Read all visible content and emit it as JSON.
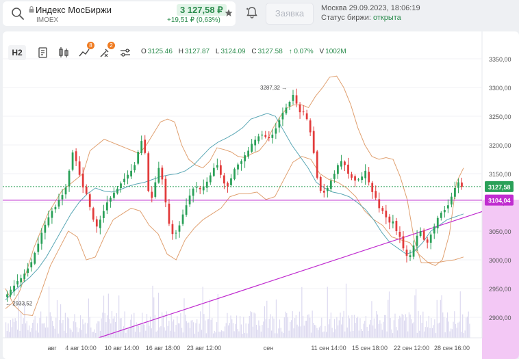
{
  "header": {
    "instrument_name": "Индекс МосБиржи",
    "instrument_code": "IMOEX",
    "price": "3 127,58 ₽",
    "change": "+19,51 ₽ (0,63%)",
    "order_button": "Заявка",
    "market_time": "Москва 29.09.2023, 18:06:19",
    "market_status_label": "Статус биржи:",
    "market_status_value": "открыта"
  },
  "toolbar": {
    "timeframe": "H2",
    "badge_indicators": "8",
    "badge_drawings": "2"
  },
  "ohlc": {
    "o_label": "O",
    "o": "3125.46",
    "h_label": "H",
    "h": "3127.87",
    "l_label": "L",
    "l": "3124.09",
    "c_label": "C",
    "c": "3127.58",
    "change_pct": "↑ 0.07%",
    "v_label": "V",
    "v": "1002M"
  },
  "chart_data": {
    "type": "candlestick",
    "y_ticks": [
      "3350,00",
      "3300,00",
      "3250,00",
      "3200,00",
      "3150,00",
      "3100,00",
      "3050,00",
      "3000,00",
      "2950,00",
      "2900,00"
    ],
    "ylim": [
      2880,
      3370
    ],
    "x_ticks": [
      "авг",
      "4 авг 10:00",
      "10 авг 14:00",
      "16 авг 18:00",
      "23 авг 12:00",
      "сен",
      "11 сен 14:00",
      "15 сен 18:00",
      "22 сен 12:00",
      "28 сен 16:00"
    ],
    "close_path": [
      2940,
      2948,
      2955,
      2963,
      2968,
      2976,
      2985,
      2996,
      3012,
      3028,
      3047,
      3061,
      3074,
      3085,
      3092,
      3104,
      3113,
      3126,
      3155,
      3187,
      3172,
      3148,
      3126,
      3115,
      3092,
      3070,
      3058,
      3070,
      3085,
      3100,
      3108,
      3117,
      3124,
      3133,
      3141,
      3148,
      3155,
      3165,
      3188,
      3207,
      3186,
      3120,
      3108,
      3135,
      3160,
      3140,
      3100,
      3063,
      3045,
      3047,
      3060,
      3079,
      3095,
      3112,
      3124,
      3127,
      3123,
      3128,
      3136,
      3147,
      3160,
      3165,
      3148,
      3133,
      3128,
      3142,
      3158,
      3166,
      3172,
      3182,
      3190,
      3202,
      3209,
      3215,
      3218,
      3214,
      3212,
      3218,
      3229,
      3243,
      3256,
      3265,
      3275,
      3287,
      3272,
      3257,
      3257,
      3245,
      3222,
      3186,
      3143,
      3120,
      3117,
      3125,
      3138,
      3150,
      3165,
      3172,
      3165,
      3150,
      3143,
      3138,
      3140,
      3145,
      3155,
      3135,
      3118,
      3108,
      3090,
      3085,
      3074,
      3065,
      3067,
      3050,
      3040,
      3020,
      3007,
      3008,
      3025,
      3042,
      3050,
      3035,
      3030,
      3044,
      3058,
      3073,
      3082,
      3087,
      3095,
      3110,
      3125,
      3135,
      3127
    ],
    "upper_band": [
      2915,
      2925,
      2945,
      2980,
      3020,
      3050,
      3080,
      3100,
      3120,
      3130,
      3140,
      3150,
      3190,
      3200,
      3210,
      3205,
      3200,
      3195,
      3190,
      3185,
      3200,
      3220,
      3240,
      3245,
      3240,
      3200,
      3175,
      3165,
      3160,
      3172,
      3195,
      3192,
      3188,
      3180,
      3178,
      3185,
      3190,
      3205,
      3230,
      3250,
      3265,
      3270,
      3270,
      3265,
      3285,
      3300,
      3318,
      3320,
      3300,
      3270,
      3230,
      3200,
      3180,
      3175,
      3178,
      3175,
      3145,
      3105,
      3035,
      2995,
      2995,
      2990,
      3000,
      3045,
      3135,
      3160
    ],
    "lower_band": [
      2950,
      2920,
      2905,
      2903,
      2945,
      2990,
      3020,
      3050,
      3040,
      3000,
      3005,
      3040,
      3070,
      3080,
      3090,
      3085,
      3060,
      3045,
      3010,
      3000,
      3035,
      3055,
      3070,
      3080,
      3090,
      3110,
      3115,
      3115,
      3118,
      3105,
      3110,
      3140,
      3170,
      3180,
      3175,
      3150,
      3140,
      3135,
      3125,
      3110,
      3085,
      3070,
      3060,
      3040,
      3035,
      3030,
      3010,
      2996,
      2995,
      2998,
      3000,
      3005
    ],
    "middle_band": [
      2930,
      2945,
      2958,
      2970,
      2985,
      3005,
      3030,
      3055,
      3080,
      3100,
      3115,
      3125,
      3120,
      3118,
      3122,
      3128,
      3132,
      3135,
      3140,
      3145,
      3148,
      3150,
      3155,
      3165,
      3180,
      3195,
      3205,
      3212,
      3220,
      3230,
      3245,
      3250,
      3255,
      3250,
      3225,
      3200,
      3180,
      3160,
      3135,
      3125,
      3118,
      3115,
      3110,
      3100,
      3088,
      3070,
      3048,
      3030,
      3020,
      3010,
      3015,
      3030,
      3050,
      3060,
      3070,
      3075,
      3080
    ],
    "current_price_label": "3127,58",
    "horizontal_level_label": "3104,04",
    "high_annotation": "3287,32 →",
    "low_annotation": "← 2933,52",
    "colors": {
      "up": "#2aa058",
      "down": "#e23b3b",
      "bollinger": "#e0a070",
      "middle": "#5aa7b5",
      "level": "#c02dd0",
      "current_price": "#2aa058",
      "volume": "#dcd9f0",
      "axis_highlight": "#f3c8f5"
    }
  }
}
